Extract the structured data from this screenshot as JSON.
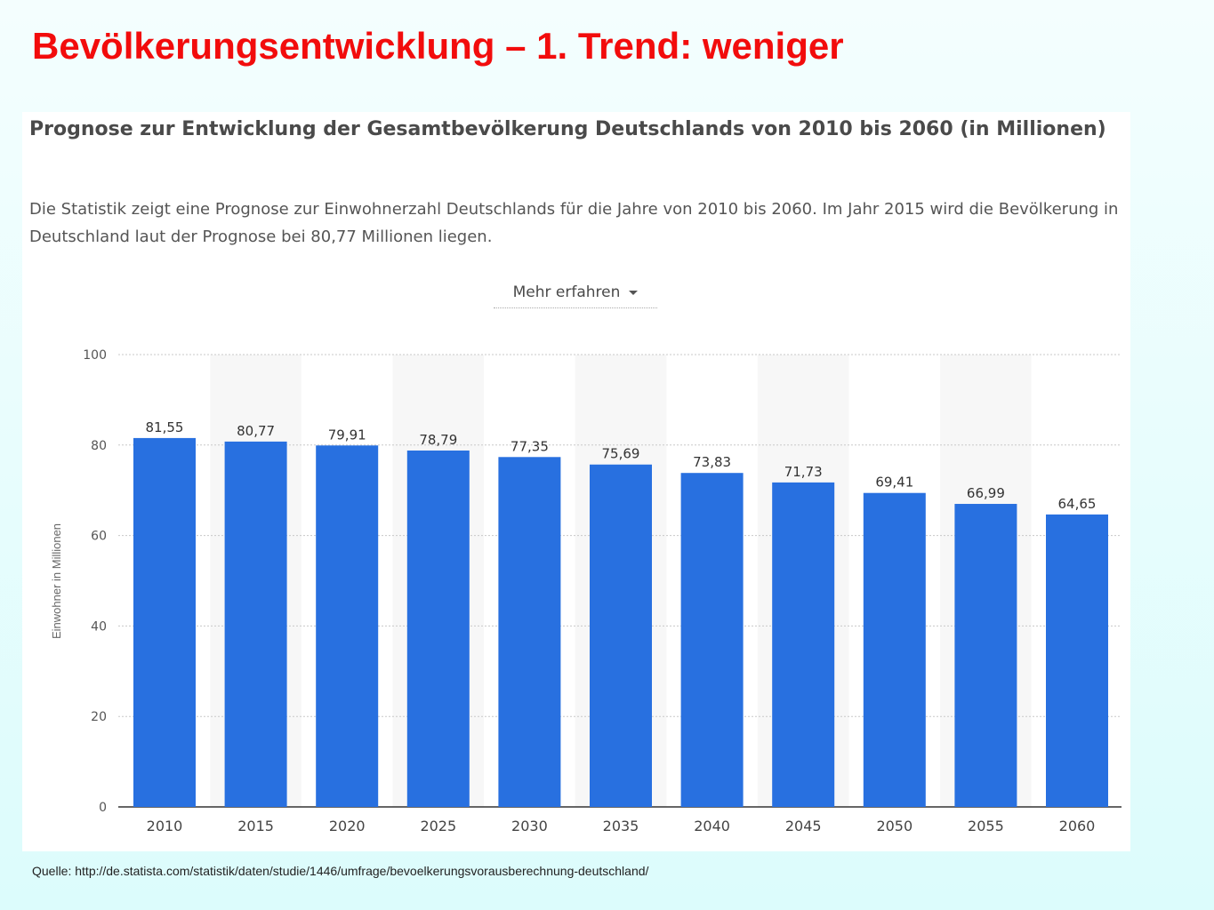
{
  "slide": {
    "title": "Bevölkerungsentwicklung – 1. Trend: weniger",
    "source": "Quelle: http://de.statista.com/statistik/daten/studie/1446/umfrage/bevoelkerungsvorausberechnung-deutschland/"
  },
  "panel": {
    "description": "Die Statistik zeigt eine Prognose zur Einwohnerzahl Deutschlands für die Jahre von 2010 bis 2060. Im Jahr 2015 wird die Bevölkerung in Deutschland laut der Prognose bei 80,77 Millionen liegen.",
    "more_label": "Mehr erfahren"
  },
  "chart_data": {
    "type": "bar",
    "title": "Prognose zur Entwicklung der Gesamtbevölkerung Deutschlands von 2010 bis 2060 (in Millionen)",
    "xlabel": "",
    "ylabel": "Einwohner in Millionen",
    "categories": [
      "2010",
      "2015",
      "2020",
      "2025",
      "2030",
      "2035",
      "2040",
      "2045",
      "2050",
      "2055",
      "2060"
    ],
    "values": [
      81.55,
      80.77,
      79.91,
      78.79,
      77.35,
      75.69,
      73.83,
      71.73,
      69.41,
      66.99,
      64.65
    ],
    "value_labels": [
      "81,55",
      "80,77",
      "79,91",
      "78,79",
      "77,35",
      "75,69",
      "73,83",
      "71,73",
      "69,41",
      "66,99",
      "64,65"
    ],
    "ylim": [
      0,
      100
    ],
    "yticks": [
      0,
      20,
      40,
      60,
      80,
      100
    ],
    "grid": true,
    "legend": "none",
    "bar_color": "#2870e0"
  }
}
